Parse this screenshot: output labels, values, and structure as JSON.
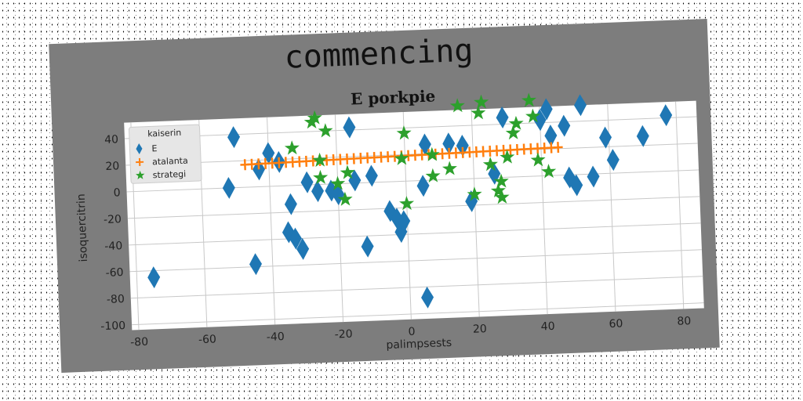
{
  "suptitle": "commencing",
  "chart_data": {
    "type": "scatter",
    "title": "E porkpie",
    "xlabel": "palimpsests",
    "ylabel": "isoquercitrin",
    "xlim": [
      -82,
      86
    ],
    "ylim": [
      -104,
      52
    ],
    "xticks": [
      -80,
      -60,
      -40,
      -20,
      0,
      20,
      40,
      60,
      80
    ],
    "yticks": [
      -100,
      -80,
      -60,
      -40,
      -20,
      0,
      20,
      40
    ],
    "grid": true,
    "legend": {
      "title": "kaiserin",
      "position": "upper-left"
    },
    "series": [
      {
        "name": "E",
        "marker": "diamond",
        "color": "#1f77b4",
        "points": [
          [
            -75,
            -65
          ],
          [
            -52,
            0
          ],
          [
            -50,
            38
          ],
          [
            -45,
            -58
          ],
          [
            -43,
            13
          ],
          [
            -40,
            25
          ],
          [
            -37,
            18
          ],
          [
            -35,
            -35
          ],
          [
            -34,
            -14
          ],
          [
            -33,
            -40
          ],
          [
            -31,
            -48
          ],
          [
            -29,
            2
          ],
          [
            -26,
            -5
          ],
          [
            -22,
            -5
          ],
          [
            -20,
            -8
          ],
          [
            -16,
            42
          ],
          [
            -15,
            2
          ],
          [
            -12,
            -48
          ],
          [
            -10,
            5
          ],
          [
            -5,
            -22
          ],
          [
            -3,
            -28
          ],
          [
            -2,
            -38
          ],
          [
            -1,
            -30
          ],
          [
            5,
            -88
          ],
          [
            5,
            -4
          ],
          [
            6,
            27
          ],
          [
            13,
            27
          ],
          [
            17,
            25
          ],
          [
            19,
            -17
          ],
          [
            26,
            3
          ],
          [
            29,
            45
          ],
          [
            40,
            42
          ],
          [
            42,
            50
          ],
          [
            43,
            30
          ],
          [
            47,
            37
          ],
          [
            48,
            -2
          ],
          [
            50,
            -8
          ],
          [
            52,
            52
          ],
          [
            55,
            -2
          ],
          [
            59,
            27
          ],
          [
            61,
            10
          ],
          [
            70,
            27
          ],
          [
            77,
            42
          ]
        ]
      },
      {
        "name": "atalanta",
        "marker": "plus",
        "color": "#ff7f0e",
        "x_start": -47,
        "x_end": 45,
        "x_step": 2,
        "y_start": 17,
        "y_end": 21
      },
      {
        "name": "strategi",
        "marker": "star",
        "color": "#2ca02c",
        "points": [
          [
            -33,
            28
          ],
          [
            -27,
            47
          ],
          [
            -26,
            50
          ],
          [
            -23,
            40
          ],
          [
            -25,
            18
          ],
          [
            -25,
            5
          ],
          [
            -20,
            0
          ],
          [
            -18,
            -12
          ],
          [
            -17,
            8
          ],
          [
            0,
            36
          ],
          [
            -1,
            17
          ],
          [
            0,
            -17
          ],
          [
            8,
            19
          ],
          [
            8,
            3
          ],
          [
            13,
            8
          ],
          [
            16,
            55
          ],
          [
            20,
            -12
          ],
          [
            22,
            49
          ],
          [
            23,
            57
          ],
          [
            25,
            10
          ],
          [
            27,
            -10
          ],
          [
            28,
            -3
          ],
          [
            28,
            -15
          ],
          [
            30,
            15
          ],
          [
            32,
            33
          ],
          [
            33,
            40
          ],
          [
            37,
            57
          ],
          [
            38,
            45
          ],
          [
            39,
            12
          ],
          [
            42,
            3
          ]
        ]
      }
    ]
  }
}
